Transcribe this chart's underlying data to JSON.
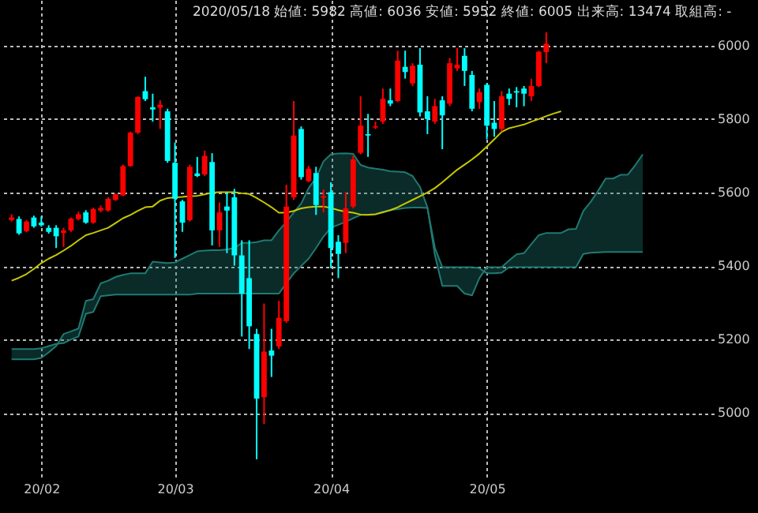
{
  "chart_data": {
    "type": "candlestick",
    "title": "2020/05/18 始値: 5982 高値: 6036 安値: 5952 終値: 6005 出来高: 13474 取組高: -",
    "categories": [
      null,
      null,
      null,
      null,
      "20/02",
      null,
      null,
      null,
      null,
      null,
      null,
      null,
      null,
      null,
      null,
      null,
      null,
      null,
      null,
      null,
      null,
      null,
      "20/03",
      null,
      null,
      null,
      null,
      null,
      null,
      null,
      null,
      null,
      null,
      null,
      null,
      null,
      null,
      null,
      null,
      null,
      null,
      null,
      null,
      "20/04",
      null,
      null,
      null,
      null,
      null,
      null,
      null,
      null,
      null,
      null,
      null,
      null,
      null,
      null,
      null,
      null,
      null,
      null,
      null,
      null,
      "20/05",
      null,
      null,
      null,
      null,
      null,
      null,
      null,
      null,
      null,
      null,
      null,
      null,
      null,
      null,
      null,
      null,
      null,
      null,
      null,
      null,
      null,
      null,
      null,
      null,
      null,
      null,
      null,
      null,
      null
    ],
    "ohlc": [
      [
        5525,
        5541,
        5521,
        5532
      ],
      [
        5528,
        5535,
        5485,
        5489
      ],
      [
        5495,
        5525,
        5492,
        5521
      ],
      [
        5532,
        5537,
        5504,
        5508
      ],
      [
        5518,
        5535,
        5507,
        5511
      ],
      [
        5504,
        5511,
        5488,
        5493
      ],
      [
        5504,
        5511,
        5449,
        5481
      ],
      [
        5490,
        5504,
        5452,
        5497
      ],
      [
        5497,
        5532,
        5493,
        5529
      ],
      [
        5528,
        5548,
        5524,
        5541
      ],
      [
        5546,
        5552,
        5515,
        5518
      ],
      [
        5518,
        5559,
        5515,
        5555
      ],
      [
        5551,
        5565,
        5546,
        5558
      ],
      [
        5551,
        5587,
        5548,
        5583
      ],
      [
        5580,
        5598,
        5577,
        5595
      ],
      [
        5592,
        5676,
        5590,
        5672
      ],
      [
        5672,
        5766,
        5670,
        5763
      ],
      [
        5763,
        5862,
        5759,
        5860
      ],
      [
        5876,
        5915,
        5849,
        5854
      ],
      [
        5832,
        5869,
        5793,
        5826
      ],
      [
        5831,
        5851,
        5773,
        5839
      ],
      [
        5821,
        5828,
        5681,
        5686
      ],
      [
        5681,
        5736,
        5422,
        5583
      ],
      [
        5576,
        5580,
        5493,
        5518
      ],
      [
        5525,
        5676,
        5521,
        5670
      ],
      [
        5652,
        5697,
        5642,
        5645
      ],
      [
        5649,
        5714,
        5645,
        5700
      ],
      [
        5683,
        5707,
        5456,
        5497
      ],
      [
        5497,
        5573,
        5452,
        5546
      ],
      [
        5562,
        5600,
        5435,
        5551
      ],
      [
        5587,
        5610,
        5401,
        5429
      ],
      [
        5429,
        5470,
        5208,
        5325
      ],
      [
        5367,
        5470,
        5174,
        5236
      ],
      [
        5215,
        5229,
        4874,
        5039
      ],
      [
        5043,
        5298,
        4970,
        5167
      ],
      [
        5170,
        5229,
        5098,
        5156
      ],
      [
        5181,
        5305,
        5174,
        5259
      ],
      [
        5250,
        5621,
        5245,
        5562
      ],
      [
        5587,
        5849,
        5580,
        5755
      ],
      [
        5773,
        5780,
        5635,
        5642
      ],
      [
        5631,
        5672,
        5628,
        5665
      ],
      [
        5653,
        5670,
        5539,
        5566
      ],
      [
        5586,
        5608,
        5546,
        5590
      ],
      [
        5601,
        5628,
        5394,
        5449
      ],
      [
        5466,
        5484,
        5367,
        5433
      ],
      [
        5463,
        5601,
        5435,
        5557
      ],
      [
        5562,
        5700,
        5557,
        5690
      ],
      [
        5708,
        5862,
        5704,
        5782
      ],
      [
        5759,
        5814,
        5697,
        5755
      ],
      [
        5777,
        5793,
        5773,
        5780
      ],
      [
        5793,
        5883,
        5787,
        5855
      ],
      [
        5851,
        5883,
        5835,
        5842
      ],
      [
        5849,
        5986,
        5846,
        5959
      ],
      [
        5942,
        5986,
        5910,
        5928
      ],
      [
        5897,
        5952,
        5890,
        5945
      ],
      [
        5948,
        5993,
        5807,
        5818
      ],
      [
        5821,
        5862,
        5759,
        5800
      ],
      [
        5793,
        5855,
        5787,
        5835
      ],
      [
        5851,
        5862,
        5718,
        5810
      ],
      [
        5842,
        5966,
        5835,
        5952
      ],
      [
        5938,
        5993,
        5931,
        5948
      ],
      [
        5972,
        5993,
        5890,
        5931
      ],
      [
        5920,
        5931,
        5821,
        5828
      ],
      [
        5846,
        5883,
        5828,
        5873
      ],
      [
        5893,
        5897,
        5745,
        5782
      ],
      [
        5790,
        5849,
        5752,
        5773
      ],
      [
        5773,
        5876,
        5766,
        5862
      ],
      [
        5869,
        5883,
        5838,
        5855
      ],
      [
        5876,
        5887,
        5832,
        5872
      ],
      [
        5883,
        5890,
        5835,
        5869
      ],
      [
        5862,
        5910,
        5849,
        5890
      ],
      [
        5890,
        5986,
        5887,
        5983
      ],
      [
        5982,
        6036,
        5952,
        6005
      ],
      null,
      null,
      null,
      null,
      null,
      null,
      null,
      null,
      null,
      null,
      null,
      null,
      null,
      null,
      null,
      null,
      null,
      null,
      null,
      null,
      null
    ],
    "colors": [
      "#ff0000",
      "#00ffff",
      "#ff0000",
      "#00ffff",
      "#00ffff",
      "#00ffff",
      "#00ffff",
      "#ff0000",
      "#ff0000",
      "#ff0000",
      "#00ffff",
      "#ff0000",
      "#ff0000",
      "#ff0000",
      "#ff0000",
      "#ff0000",
      "#ff0000",
      "#ff0000",
      "#00ffff",
      "#00ffff",
      "#ff0000",
      "#00ffff",
      "#00ffff",
      "#00ffff",
      "#ff0000",
      "#00ffff",
      "#ff0000",
      "#00ffff",
      "#ff0000",
      "#00ffff",
      "#00ffff",
      "#00ffff",
      "#00ffff",
      "#00ffff",
      "#ff0000",
      "#00ffff",
      "#ff0000",
      "#ff0000",
      "#ff0000",
      "#00ffff",
      "#ff0000",
      "#00ffff",
      "#ff0000",
      "#00ffff",
      "#00ffff",
      "#ff0000",
      "#ff0000",
      "#ff0000",
      "#00ffff",
      "#ff0000",
      "#ff0000",
      "#00ffff",
      "#ff0000",
      "#00ffff",
      "#ff0000",
      "#00ffff",
      "#00ffff",
      "#ff0000",
      "#00ffff",
      "#ff0000",
      "#ff0000",
      "#00ffff",
      "#00ffff",
      "#ff0000",
      "#00ffff",
      "#00ffff",
      "#ff0000",
      "#00ffff",
      "#00ffff",
      "#00ffff",
      "#ff0000",
      "#ff0000",
      "#ff0000",
      null,
      null,
      null,
      null,
      null,
      null,
      null,
      null,
      null,
      null,
      null,
      null,
      null,
      null,
      null,
      null,
      null,
      null,
      null,
      null,
      null
    ],
    "series": [
      {
        "type": "line",
        "color": "#1f7a72",
        "values": [
          5146,
          5146,
          5146,
          5146,
          5150,
          5165,
          5182,
          5215,
          5222,
          5230,
          5305,
          5310,
          5353,
          5360,
          5370,
          5376,
          5380,
          5380,
          5380,
          5412,
          5410,
          5408,
          5410,
          5420,
          5430,
          5440,
          5442,
          5443,
          5443,
          5445,
          5449,
          5463,
          5463,
          5465,
          5470,
          5470,
          5497,
          5520,
          5546,
          5570,
          5612,
          5640,
          5685,
          5704,
          5706,
          5707,
          5705,
          5675,
          5668,
          5665,
          5662,
          5658,
          5657,
          5655,
          5645,
          5615,
          5560,
          5430,
          5346,
          5346,
          5346,
          5325,
          5320,
          5367,
          5397,
          5397,
          5397,
          5415,
          5432,
          5435,
          5460,
          5484,
          5490,
          5490,
          5490,
          5500,
          5501,
          5550,
          5575,
          5605,
          5638,
          5638,
          5648,
          5649,
          5675,
          5704,
          null,
          null,
          null,
          null,
          null,
          null,
          null,
          null
        ],
        "upper": [
          5146,
          5146,
          5146,
          5146,
          5150,
          5165,
          5182,
          5215,
          5222,
          5230,
          5305,
          5310,
          5353,
          5360,
          5370,
          5376,
          5380,
          5380,
          5380,
          5412,
          5410,
          5408,
          5410,
          5420,
          5430,
          5440,
          5442,
          5443,
          5443,
          5445,
          5449,
          5463,
          5463,
          5465,
          5470,
          5470,
          5497,
          5520,
          5546,
          5570,
          5612,
          5640,
          5685,
          5704,
          5706,
          5707,
          5705,
          5675,
          5668,
          5665,
          5662,
          5658,
          5657,
          5655,
          5645,
          5615,
          5560,
          5430,
          5346,
          5346,
          5346,
          5325,
          5320,
          5367,
          5397,
          5397,
          5397,
          5415,
          5432,
          5435,
          5460,
          5484,
          5490,
          5490,
          5490,
          5500,
          5501,
          5550,
          5575,
          5605,
          5638,
          5638,
          5648,
          5649,
          5675,
          5704,
          null,
          null,
          null,
          null,
          null,
          null,
          null,
          null
        ],
        "lower": [
          5174,
          5174,
          5174,
          5174,
          5176,
          5182,
          5188,
          5190,
          5200,
          5208,
          5270,
          5275,
          5318,
          5320,
          5322,
          5322,
          5322,
          5322,
          5322,
          5322,
          5322,
          5322,
          5322,
          5322,
          5322,
          5325,
          5325,
          5325,
          5325,
          5325,
          5325,
          5325,
          5325,
          5325,
          5325,
          5325,
          5325,
          5353,
          5380,
          5400,
          5420,
          5449,
          5480,
          5504,
          5512,
          5520,
          5530,
          5539,
          5540,
          5541,
          5548,
          5552,
          5555,
          5558,
          5559,
          5559,
          5558,
          5450,
          5397,
          5397,
          5397,
          5397,
          5397,
          5394,
          5380,
          5380,
          5382,
          5397,
          5397,
          5397,
          5397,
          5397,
          5397,
          5397,
          5397,
          5397,
          5397,
          5433,
          5436,
          5437,
          5438,
          5438,
          5438,
          5438,
          5438,
          5438,
          null,
          null,
          null,
          null,
          null,
          null,
          null,
          null
        ]
      },
      {
        "type": "line",
        "color": "#1f7a72",
        "values": [
          5174,
          5174,
          5174,
          5174,
          5176,
          5182,
          5188,
          5190,
          5200,
          5208,
          5270,
          5275,
          5318,
          5320,
          5322,
          5322,
          5322,
          5322,
          5322,
          5322,
          5322,
          5322,
          5322,
          5322,
          5322,
          5325,
          5325,
          5325,
          5325,
          5325,
          5325,
          5325,
          5325,
          5325,
          5325,
          5325,
          5325,
          5353,
          5380,
          5400,
          5420,
          5449,
          5480,
          5504,
          5512,
          5520,
          5530,
          5539,
          5540,
          5541,
          5548,
          5552,
          5555,
          5558,
          5559,
          5559,
          5558,
          5450,
          5397,
          5397,
          5397,
          5397,
          5397,
          5394,
          5380,
          5380,
          5382,
          5397,
          5397,
          5397,
          5397,
          5397,
          5397,
          5397,
          5397,
          5397,
          5397,
          5433,
          5436,
          5437,
          5438,
          5438,
          5438,
          5438,
          5438,
          5438,
          null,
          null,
          null,
          null,
          null,
          null,
          null,
          null
        ]
      },
      {
        "type": "line",
        "color": "#c8c800",
        "values": [
          5360,
          5368,
          5378,
          5392,
          5408,
          5420,
          5430,
          5442,
          5455,
          5470,
          5484,
          5490,
          5497,
          5504,
          5517,
          5530,
          5539,
          5550,
          5560,
          5562,
          5578,
          5585,
          5587,
          5588,
          5590,
          5591,
          5595,
          5600,
          5601,
          5601,
          5601,
          5598,
          5596,
          5585,
          5573,
          5560,
          5545,
          5545,
          5550,
          5557,
          5560,
          5562,
          5562,
          5558,
          5552,
          5548,
          5545,
          5540,
          5539,
          5541,
          5546,
          5552,
          5560,
          5570,
          5580,
          5590,
          5600,
          5612,
          5628,
          5645,
          5662,
          5676,
          5690,
          5706,
          5725,
          5745,
          5765,
          5775,
          5780,
          5785,
          5793,
          5800,
          5808,
          5815,
          5821,
          null,
          null,
          null,
          null,
          null,
          null,
          null,
          null,
          null,
          null,
          null,
          null,
          null,
          null,
          null,
          null,
          null,
          null,
          null
        ]
      }
    ],
    "ylim": [
      4818,
      6124
    ],
    "yticks": [
      5000,
      5200,
      5400,
      5600,
      5800,
      6000
    ],
    "grid": true
  }
}
